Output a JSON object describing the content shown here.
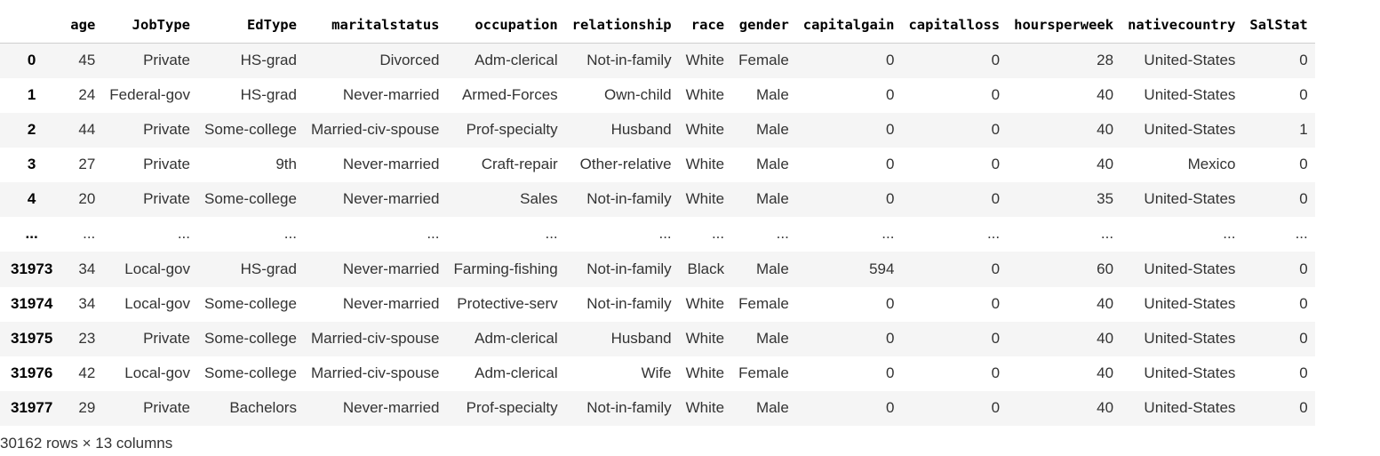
{
  "columns": [
    "",
    "age",
    "JobType",
    "EdType",
    "maritalstatus",
    "occupation",
    "relationship",
    "race",
    "gender",
    "capitalgain",
    "capitalloss",
    "hoursperweek",
    "nativecountry",
    "SalStat"
  ],
  "rows": [
    [
      "0",
      "45",
      "Private",
      "HS-grad",
      "Divorced",
      "Adm-clerical",
      "Not-in-family",
      "White",
      "Female",
      "0",
      "0",
      "28",
      "United-States",
      "0"
    ],
    [
      "1",
      "24",
      "Federal-gov",
      "HS-grad",
      "Never-married",
      "Armed-Forces",
      "Own-child",
      "White",
      "Male",
      "0",
      "0",
      "40",
      "United-States",
      "0"
    ],
    [
      "2",
      "44",
      "Private",
      "Some-college",
      "Married-civ-spouse",
      "Prof-specialty",
      "Husband",
      "White",
      "Male",
      "0",
      "0",
      "40",
      "United-States",
      "1"
    ],
    [
      "3",
      "27",
      "Private",
      "9th",
      "Never-married",
      "Craft-repair",
      "Other-relative",
      "White",
      "Male",
      "0",
      "0",
      "40",
      "Mexico",
      "0"
    ],
    [
      "4",
      "20",
      "Private",
      "Some-college",
      "Never-married",
      "Sales",
      "Not-in-family",
      "White",
      "Male",
      "0",
      "0",
      "35",
      "United-States",
      "0"
    ],
    [
      "...",
      "...",
      "...",
      "...",
      "...",
      "...",
      "...",
      "...",
      "...",
      "...",
      "...",
      "...",
      "...",
      "..."
    ],
    [
      "31973",
      "34",
      "Local-gov",
      "HS-grad",
      "Never-married",
      "Farming-fishing",
      "Not-in-family",
      "Black",
      "Male",
      "594",
      "0",
      "60",
      "United-States",
      "0"
    ],
    [
      "31974",
      "34",
      "Local-gov",
      "Some-college",
      "Never-married",
      "Protective-serv",
      "Not-in-family",
      "White",
      "Female",
      "0",
      "0",
      "40",
      "United-States",
      "0"
    ],
    [
      "31975",
      "23",
      "Private",
      "Some-college",
      "Married-civ-spouse",
      "Adm-clerical",
      "Husband",
      "White",
      "Male",
      "0",
      "0",
      "40",
      "United-States",
      "0"
    ],
    [
      "31976",
      "42",
      "Local-gov",
      "Some-college",
      "Married-civ-spouse",
      "Adm-clerical",
      "Wife",
      "White",
      "Female",
      "0",
      "0",
      "40",
      "United-States",
      "0"
    ],
    [
      "31977",
      "29",
      "Private",
      "Bachelors",
      "Never-married",
      "Prof-specialty",
      "Not-in-family",
      "White",
      "Male",
      "0",
      "0",
      "40",
      "United-States",
      "0"
    ]
  ],
  "footer": "30162 rows × 13 columns"
}
